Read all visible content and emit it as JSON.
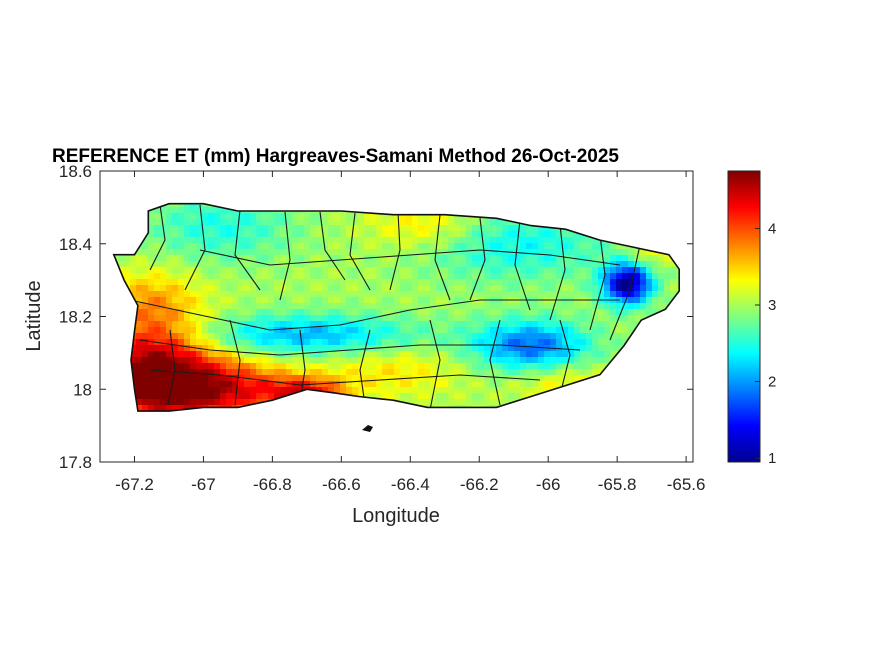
{
  "chart_data": {
    "type": "heatmap",
    "title": "REFERENCE ET (mm) Hargreaves-Samani Method  26-Oct-2025",
    "xlabel": "Longitude",
    "ylabel": "Latitude",
    "xlim": [
      -67.3,
      -65.58
    ],
    "ylim": [
      17.8,
      18.6
    ],
    "xticks": [
      -67.2,
      -67,
      -66.8,
      -66.6,
      -66.4,
      -66.2,
      -66,
      -65.8,
      -65.6
    ],
    "xtick_labels": [
      "-67.2",
      "-67",
      "-66.8",
      "-66.6",
      "-66.4",
      "-66.2",
      "-66",
      "-65.8",
      "-65.6"
    ],
    "yticks": [
      17.8,
      18,
      18.2,
      18.4,
      18.6
    ],
    "ytick_labels": [
      "17.8",
      "18",
      "18.2",
      "18.4",
      "18.6"
    ],
    "colorbar": {
      "colormap": "jet",
      "range": [
        0.95,
        4.75
      ],
      "ticks": [
        1,
        2,
        3,
        4
      ],
      "tick_labels": [
        "1",
        "2",
        "3",
        "4"
      ]
    },
    "grid": false,
    "region_outline": [
      [
        -67.2,
        18.37
      ],
      [
        -67.16,
        18.43
      ],
      [
        -67.16,
        18.49
      ],
      [
        -67.1,
        18.51
      ],
      [
        -67.0,
        18.51
      ],
      [
        -66.9,
        18.49
      ],
      [
        -66.78,
        18.49
      ],
      [
        -66.6,
        18.49
      ],
      [
        -66.45,
        18.48
      ],
      [
        -66.3,
        18.48
      ],
      [
        -66.15,
        18.47
      ],
      [
        -66.05,
        18.45
      ],
      [
        -65.95,
        18.44
      ],
      [
        -65.85,
        18.41
      ],
      [
        -65.75,
        18.39
      ],
      [
        -65.65,
        18.37
      ],
      [
        -65.62,
        18.33
      ],
      [
        -65.62,
        18.27
      ],
      [
        -65.66,
        18.22
      ],
      [
        -65.73,
        18.19
      ],
      [
        -65.78,
        18.12
      ],
      [
        -65.85,
        18.04
      ],
      [
        -65.95,
        18.01
      ],
      [
        -66.05,
        17.98
      ],
      [
        -66.15,
        17.95
      ],
      [
        -66.25,
        17.95
      ],
      [
        -66.35,
        17.95
      ],
      [
        -66.45,
        17.97
      ],
      [
        -66.55,
        17.98
      ],
      [
        -66.62,
        17.99
      ],
      [
        -66.7,
        18.0
      ],
      [
        -66.8,
        17.97
      ],
      [
        -66.9,
        17.95
      ],
      [
        -67.0,
        17.95
      ],
      [
        -67.1,
        17.94
      ],
      [
        -67.19,
        17.94
      ],
      [
        -67.2,
        18.0
      ],
      [
        -67.21,
        18.08
      ],
      [
        -67.2,
        18.16
      ],
      [
        -67.19,
        18.23
      ],
      [
        -67.23,
        18.3
      ],
      [
        -67.26,
        18.37
      ],
      [
        -67.2,
        18.37
      ]
    ],
    "value_field": {
      "base": 3.0,
      "features": [
        {
          "lon": -67.15,
          "lat": 18.05,
          "amp": 1.7,
          "sx": 0.12,
          "sy": 0.1
        },
        {
          "lon": -66.95,
          "lat": 18.0,
          "amp": 1.3,
          "sx": 0.15,
          "sy": 0.06
        },
        {
          "lon": -66.7,
          "lat": 17.99,
          "amp": 1.1,
          "sx": 0.08,
          "sy": 0.03
        },
        {
          "lon": -67.15,
          "lat": 18.25,
          "amp": 0.5,
          "sx": 0.1,
          "sy": 0.06
        },
        {
          "lon": -65.77,
          "lat": 18.29,
          "amp": -2.0,
          "sx": 0.05,
          "sy": 0.04
        },
        {
          "lon": -66.05,
          "lat": 18.12,
          "amp": -1.2,
          "sx": 0.12,
          "sy": 0.05
        },
        {
          "lon": -66.7,
          "lat": 18.15,
          "amp": -0.9,
          "sx": 0.22,
          "sy": 0.04
        },
        {
          "lon": -66.95,
          "lat": 18.45,
          "amp": -0.5,
          "sx": 0.15,
          "sy": 0.07
        },
        {
          "lon": -66.1,
          "lat": 18.4,
          "amp": -0.6,
          "sx": 0.2,
          "sy": 0.07
        },
        {
          "lon": -66.35,
          "lat": 18.45,
          "amp": 0.5,
          "sx": 0.12,
          "sy": 0.05
        },
        {
          "lon": -66.45,
          "lat": 18.05,
          "amp": 0.4,
          "sx": 0.15,
          "sy": 0.05
        },
        {
          "lon": -65.95,
          "lat": 18.02,
          "amp": 0.4,
          "sx": 0.1,
          "sy": 0.04
        },
        {
          "lon": -65.7,
          "lat": 18.38,
          "amp": 0.4,
          "sx": 0.05,
          "sy": 0.03
        }
      ]
    }
  }
}
